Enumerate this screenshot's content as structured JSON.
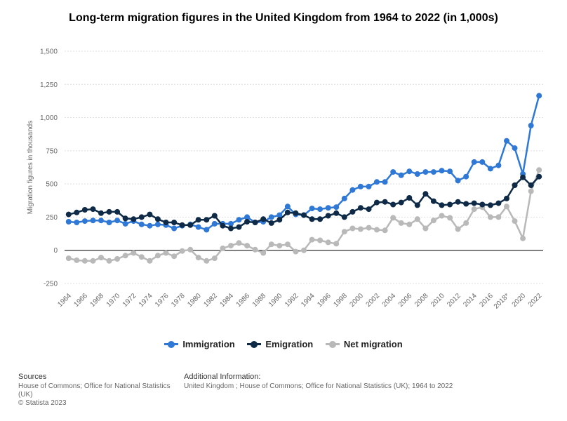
{
  "title": "Long-term migration figures in the United Kingdom from 1964 to 2022 (in 1,000s)",
  "colors": {
    "immigration": "#2f78d6",
    "emigration": "#0e2a47",
    "net": "#b9b9b9",
    "grid": "#dddddd",
    "zero": "#000000"
  },
  "chart_data": {
    "type": "line",
    "title": "Long-term migration figures in the United Kingdom from 1964 to 2022 (in 1,000s)",
    "xlabel": "",
    "ylabel": "Migration figures in thousands",
    "ylim": [
      -250,
      1500
    ],
    "yticks": [
      -250,
      0,
      250,
      500,
      750,
      1000,
      1250,
      1500
    ],
    "ytick_labels": [
      "-250",
      "0",
      "250",
      "500",
      "750",
      "1,000",
      "1,250",
      "1,500"
    ],
    "categories": [
      "1964",
      "1965",
      "1966",
      "1967",
      "1968",
      "1969",
      "1970",
      "1971",
      "1972",
      "1973",
      "1974",
      "1975",
      "1976",
      "1977",
      "1978",
      "1979",
      "1980",
      "1981",
      "1982",
      "1983",
      "1984",
      "1985",
      "1986",
      "1987",
      "1988",
      "1989",
      "1990",
      "1991",
      "1992",
      "1993",
      "1994",
      "1995",
      "1996",
      "1997",
      "1998",
      "1999",
      "2000",
      "2001",
      "2002",
      "2003",
      "2004",
      "2005",
      "2006",
      "2007",
      "2008",
      "2009",
      "2010",
      "2011",
      "2012",
      "2013",
      "2014",
      "2015",
      "2016",
      "2017",
      "2018*",
      "2019",
      "2020",
      "2021",
      "2022"
    ],
    "tick_labels": [
      "1964",
      "1966",
      "1968",
      "1970",
      "1972",
      "1974",
      "1976",
      "1978",
      "1980",
      "1982",
      "1984",
      "1986",
      "1988",
      "1990",
      "1992",
      "1994",
      "1996",
      "1998",
      "2000",
      "2002",
      "2004",
      "2006",
      "2008",
      "2010",
      "2012",
      "2014",
      "2016",
      "2018*",
      "2020",
      "2022"
    ],
    "legend_position": "bottom",
    "series": [
      {
        "name": "Immigration",
        "color": "#2f78d6",
        "values": [
          215,
          210,
          220,
          225,
          225,
          210,
          225,
          200,
          220,
          195,
          185,
          195,
          190,
          165,
          185,
          195,
          175,
          155,
          200,
          200,
          200,
          230,
          250,
          210,
          215,
          250,
          265,
          330,
          270,
          265,
          315,
          310,
          320,
          325,
          390,
          455,
          480,
          480,
          515,
          515,
          590,
          565,
          595,
          575,
          590,
          590,
          600,
          595,
          525,
          555,
          665,
          665,
          615,
          640,
          825,
          770,
          575,
          940,
          1165
        ]
      },
      {
        "name": "Emigration",
        "color": "#0e2a47",
        "values": [
          270,
          285,
          305,
          310,
          280,
          290,
          290,
          240,
          235,
          250,
          270,
          235,
          210,
          210,
          190,
          190,
          230,
          230,
          260,
          185,
          165,
          175,
          215,
          210,
          235,
          205,
          230,
          285,
          280,
          265,
          235,
          235,
          260,
          280,
          250,
          290,
          320,
          310,
          360,
          365,
          345,
          360,
          395,
          340,
          425,
          370,
          340,
          345,
          365,
          350,
          355,
          345,
          340,
          355,
          390,
          490,
          550,
          490,
          555
        ]
      },
      {
        "name": "Net migration",
        "color": "#b9b9b9",
        "values": [
          -60,
          -75,
          -80,
          -80,
          -55,
          -80,
          -65,
          -40,
          -20,
          -50,
          -80,
          -40,
          -20,
          -45,
          -5,
          5,
          -55,
          -80,
          -60,
          15,
          35,
          55,
          35,
          5,
          -20,
          45,
          35,
          45,
          -10,
          0,
          80,
          75,
          60,
          50,
          140,
          165,
          160,
          170,
          155,
          150,
          245,
          205,
          195,
          235,
          165,
          225,
          260,
          245,
          160,
          205,
          310,
          325,
          250,
          250,
          330,
          220,
          90,
          445,
          605
        ]
      }
    ]
  },
  "legend": {
    "items": [
      "Immigration",
      "Emigration",
      "Net migration"
    ]
  },
  "footer": {
    "sources_title": "Sources",
    "sources_line1": "House of Commons; Office for National Statistics",
    "sources_line2": "(UK)",
    "sources_line3": "© Statista 2023",
    "addinfo_title": "Additional Information:",
    "addinfo_text": "United Kingdom ; House of Commons; Office for National Statistics (UK); 1964 to 2022"
  }
}
